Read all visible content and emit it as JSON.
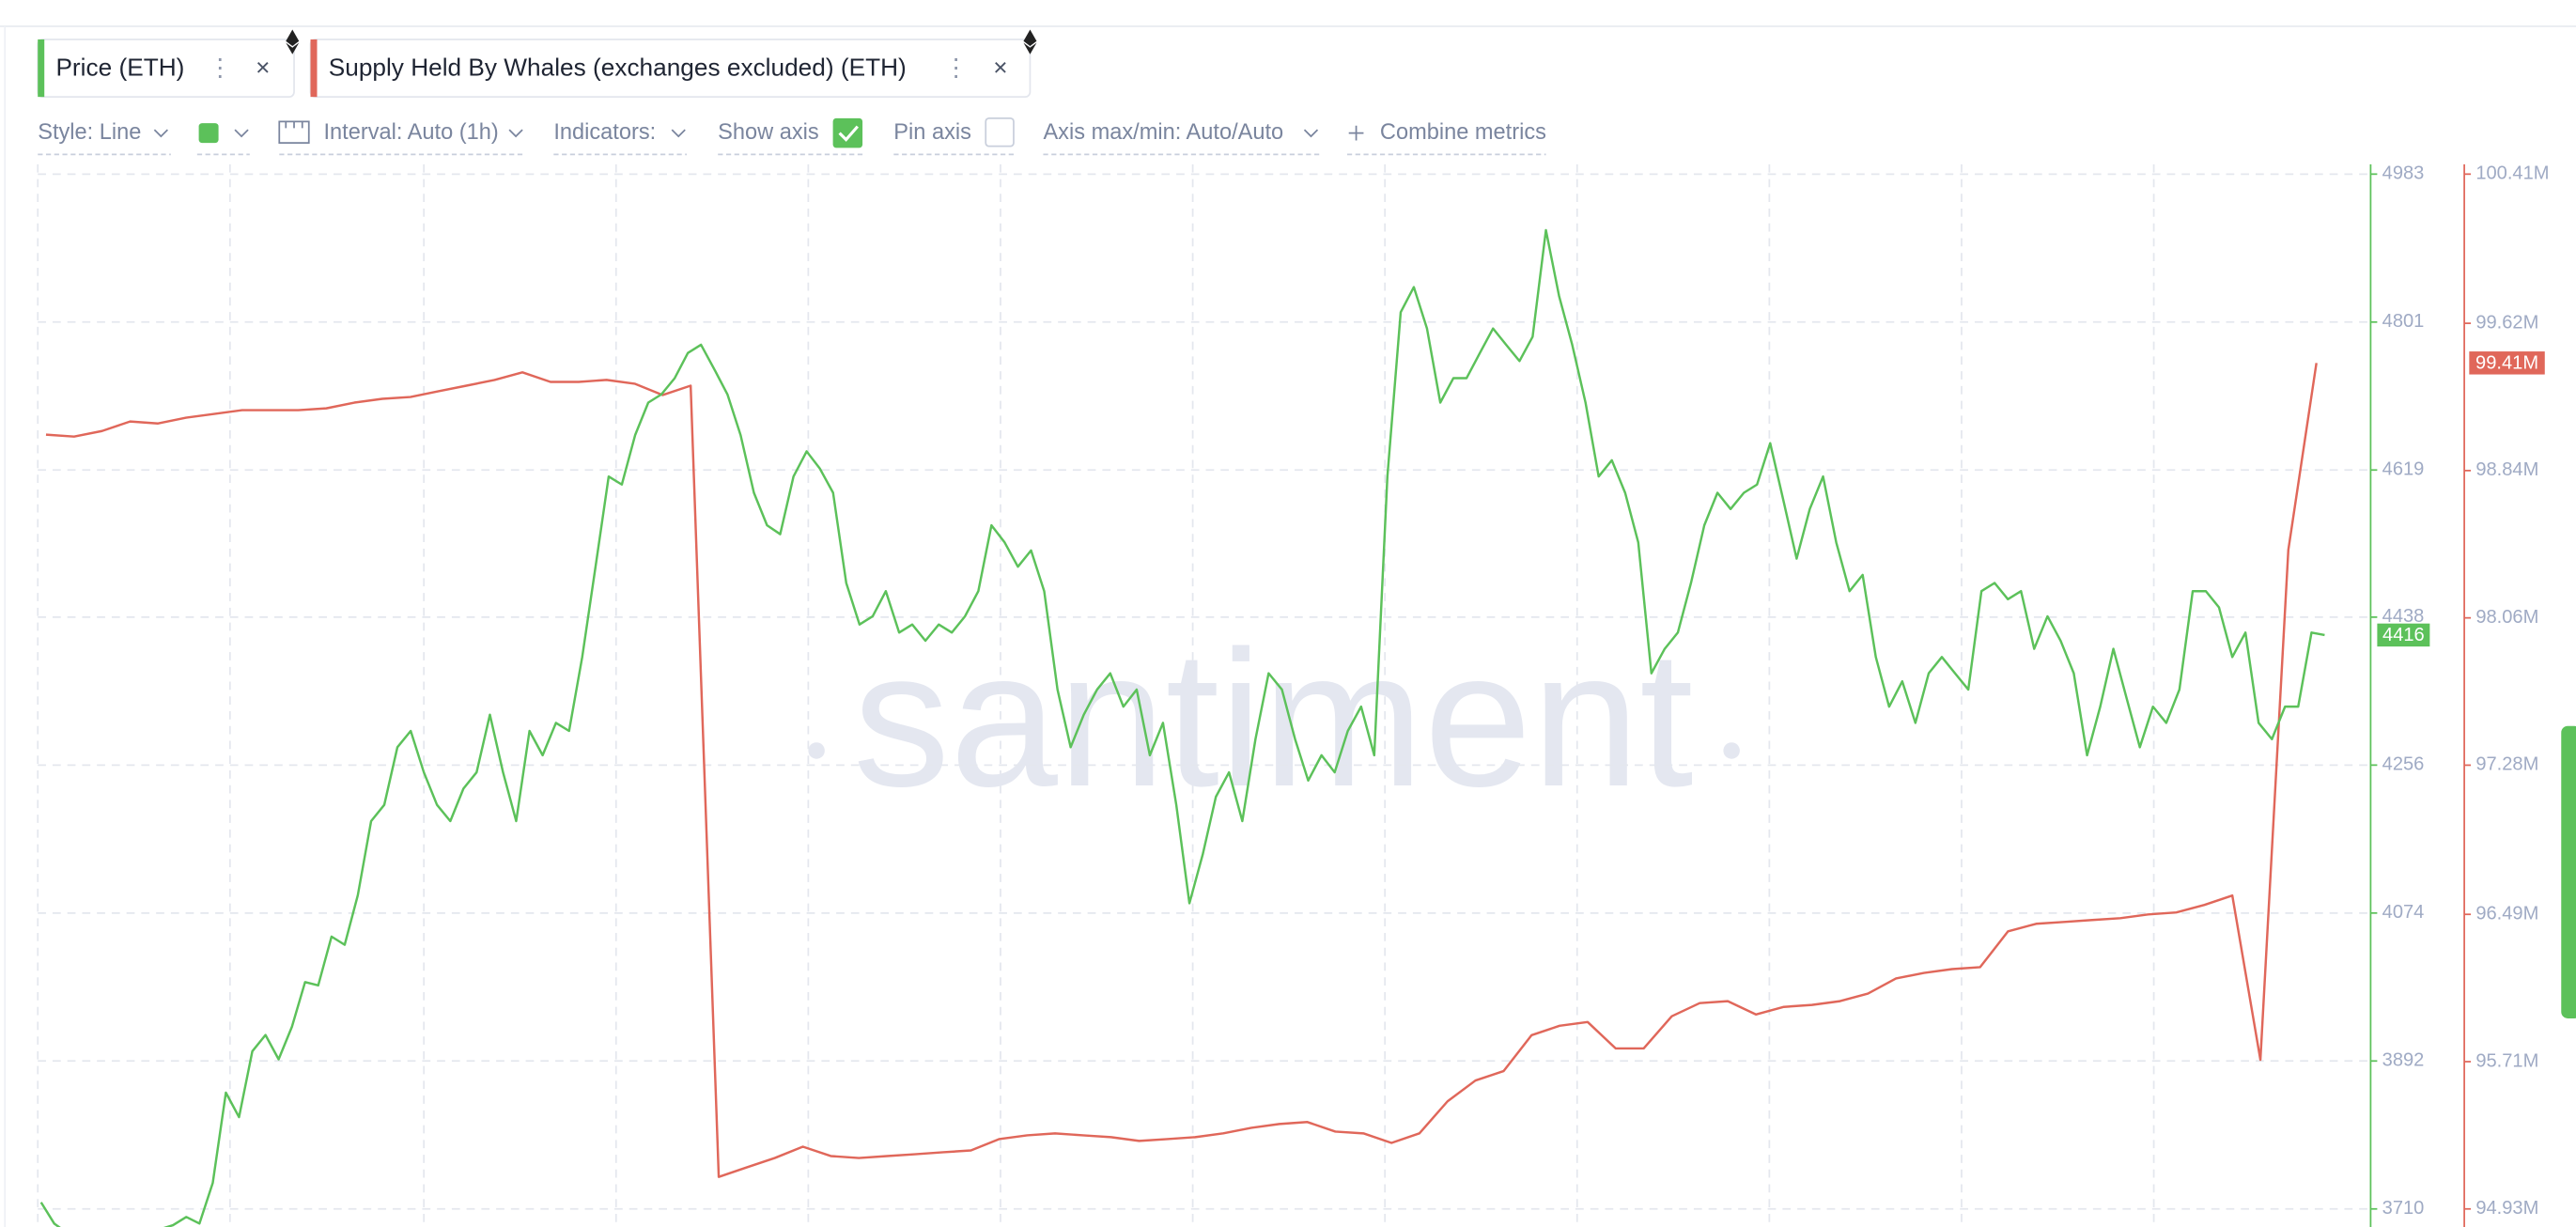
{
  "toolbar": {
    "metrics": [
      "Price (ETH)",
      "Supply Held By Whales (exchanges excluded) (ETH)"
    ],
    "style": "Style: Line",
    "interval": "Interval: Auto (1h)",
    "indicators": "Indicators:",
    "show_axis": "Show axis",
    "pin_axis": "Pin axis",
    "axis_minmax": "Axis max/min: Auto/Auto",
    "combine": "Combine metrics",
    "watermark": "santiment"
  },
  "chart_data": {
    "type": "line",
    "grid": true,
    "ylim": [
      3710,
      4983
    ],
    "yticks": [
      3710,
      3892,
      4074,
      4256,
      4438,
      4619,
      4801,
      4983
    ],
    "y2lim": [
      94930000,
      100410000
    ],
    "y2ticks": [
      {
        "value": 94930000,
        "label": "94.93M"
      },
      {
        "value": 95710000,
        "label": "95.71M"
      },
      {
        "value": 96490000,
        "label": "96.49M"
      },
      {
        "value": 97280000,
        "label": "97.28M"
      },
      {
        "value": 98060000,
        "label": "98.06M"
      },
      {
        "value": 98840000,
        "label": "98.84M"
      },
      {
        "value": 99620000,
        "label": "99.62M"
      },
      {
        "value": 100410000,
        "label": "100.41M"
      }
    ],
    "series": [
      {
        "name": "Price (ETH)",
        "color": "#5cc15a",
        "values": [
          3718,
          3692,
          3680,
          3678,
          3675,
          3672,
          3670,
          3675,
          3680,
          3685,
          3690,
          3700,
          3692,
          3742,
          3853,
          3823,
          3904,
          3924,
          3894,
          3934,
          3989,
          3985,
          4045,
          4035,
          4096,
          4187,
          4207,
          4278,
          4298,
          4247,
          4207,
          4187,
          4227,
          4247,
          4318,
          4247,
          4187,
          4298,
          4268,
          4308,
          4298,
          4389,
          4500,
          4611,
          4601,
          4662,
          4702,
          4712,
          4732,
          4763,
          4773,
          4743,
          4712,
          4662,
          4591,
          4551,
          4540,
          4611,
          4642,
          4621,
          4591,
          4480,
          4429,
          4439,
          4470,
          4419,
          4429,
          4409,
          4429,
          4419,
          4439,
          4470,
          4551,
          4530,
          4500,
          4520,
          4470,
          4349,
          4278,
          4318,
          4349,
          4369,
          4328,
          4349,
          4268,
          4308,
          4207,
          4086,
          4146,
          4217,
          4247,
          4187,
          4288,
          4369,
          4349,
          4288,
          4237,
          4268,
          4247,
          4298,
          4328,
          4268,
          4611,
          4813,
          4844,
          4793,
          4702,
          4732,
          4732,
          4763,
          4793,
          4773,
          4753,
          4783,
          4914,
          4833,
          4773,
          4702,
          4611,
          4631,
          4591,
          4530,
          4369,
          4399,
          4419,
          4480,
          4551,
          4591,
          4571,
          4591,
          4601,
          4652,
          4581,
          4510,
          4571,
          4611,
          4530,
          4470,
          4490,
          4389,
          4328,
          4359,
          4308,
          4369,
          4389,
          4369,
          4349,
          4470,
          4480,
          4460,
          4470,
          4399,
          4439,
          4409,
          4369,
          4268,
          4328,
          4399,
          4338,
          4278,
          4328,
          4308,
          4349,
          4470,
          4470,
          4450,
          4389,
          4419,
          4308,
          4288,
          4328,
          4328,
          4419,
          4416
        ]
      },
      {
        "name": "Supply Held By Whales (exchanges excluded) (ETH)",
        "color": "#e0675a",
        "axis": "y2",
        "last_value_label": "99.41M",
        "values": [
          99030000,
          99020000,
          99050000,
          99100000,
          99090000,
          99120000,
          99140000,
          99160000,
          99160000,
          99160000,
          99170000,
          99200000,
          99220000,
          99230000,
          99260000,
          99290000,
          99320000,
          99360000,
          99310000,
          99310000,
          99320000,
          99300000,
          99240000,
          99290000,
          95100000,
          95150000,
          95200000,
          95260000,
          95210000,
          95200000,
          95210000,
          95220000,
          95230000,
          95240000,
          95300000,
          95320000,
          95330000,
          95320000,
          95310000,
          95290000,
          95300000,
          95310000,
          95330000,
          95360000,
          95380000,
          95390000,
          95340000,
          95330000,
          95280000,
          95330000,
          95500000,
          95610000,
          95660000,
          95850000,
          95900000,
          95920000,
          95780000,
          95780000,
          95950000,
          96020000,
          96030000,
          95960000,
          96000000,
          96010000,
          96030000,
          96070000,
          96150000,
          96180000,
          96200000,
          96210000,
          96400000,
          96440000,
          96450000,
          96460000,
          96470000,
          96490000,
          96500000,
          96540000,
          96590000,
          95720000,
          98420000,
          99410000
        ]
      }
    ]
  }
}
